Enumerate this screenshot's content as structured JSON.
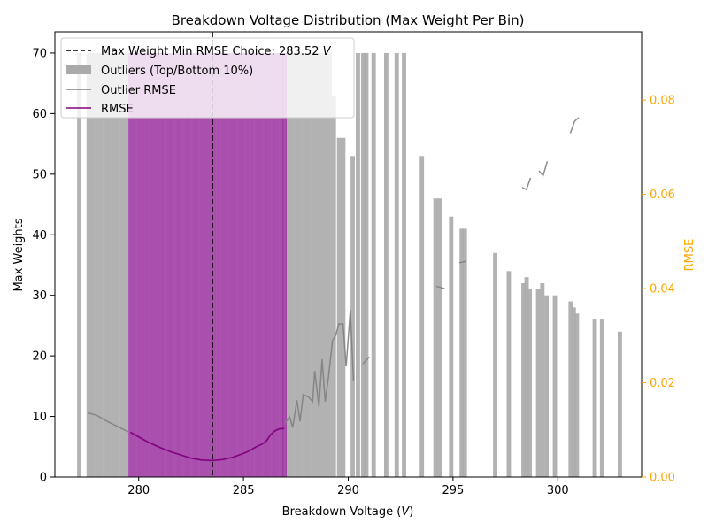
{
  "chart_data": {
    "type": "bar",
    "title": "Breakdown Voltage Distribution (Max Weight Per Bin)",
    "xlabel": "Breakdown Voltage (",
    "xlabel_unit": "V",
    "xlabel_close": ")",
    "ylabel_left": "Max Weights",
    "ylabel_right": "RMSE",
    "xlim": [
      276.0,
      304.0
    ],
    "ylim_left": [
      0,
      73.5
    ],
    "ylim_right": [
      0,
      0.0945
    ],
    "x_ticks": [
      280,
      285,
      290,
      295,
      300
    ],
    "y_ticks_left": [
      0,
      10,
      20,
      30,
      40,
      50,
      60,
      70
    ],
    "y_ticks_right": [
      "0.00",
      "0.02",
      "0.04",
      "0.06",
      "0.08"
    ],
    "y_ticks_right_values": [
      0.0,
      0.02,
      0.04,
      0.06,
      0.08
    ],
    "legend": {
      "placement": "top-left",
      "entries": [
        {
          "label": "Max Weight Min RMSE Choice: 283.52 ",
          "unit": "V",
          "style": "dashed-line",
          "color": "#000000"
        },
        {
          "label": "Outliers (Top/Bottom 10%)",
          "style": "bar",
          "color": "#aaaaaa"
        },
        {
          "label": "Outlier RMSE",
          "style": "line",
          "color": "#808080"
        },
        {
          "label": "RMSE",
          "style": "line",
          "color": "#800080"
        }
      ]
    },
    "choice_x": 283.52,
    "colors": {
      "outlier_bar": "#aaaaaa",
      "main_bar": "#9b30a0",
      "outlier_rmse": "#808080",
      "rmse": "#800080",
      "right_axis": "#ffa500",
      "choice_line": "#000000"
    },
    "bar_width": 0.18,
    "outlier_bars": [
      {
        "x": 277.15,
        "y": 70
      },
      {
        "x": 277.6,
        "y": 70
      },
      {
        "x": 277.8,
        "y": 70
      },
      {
        "x": 278.0,
        "y": 70
      },
      {
        "x": 278.2,
        "y": 70
      },
      {
        "x": 278.4,
        "y": 70
      },
      {
        "x": 278.6,
        "y": 70
      },
      {
        "x": 278.8,
        "y": 70
      },
      {
        "x": 279.0,
        "y": 70
      },
      {
        "x": 279.2,
        "y": 70
      },
      {
        "x": 279.4,
        "y": 70
      },
      {
        "x": 287.1,
        "y": 70
      },
      {
        "x": 287.3,
        "y": 70
      },
      {
        "x": 287.5,
        "y": 70
      },
      {
        "x": 287.7,
        "y": 70
      },
      {
        "x": 287.9,
        "y": 70
      },
      {
        "x": 288.1,
        "y": 70
      },
      {
        "x": 288.3,
        "y": 70
      },
      {
        "x": 288.5,
        "y": 70
      },
      {
        "x": 288.7,
        "y": 70
      },
      {
        "x": 288.9,
        "y": 70
      },
      {
        "x": 289.1,
        "y": 70
      },
      {
        "x": 289.3,
        "y": 63
      },
      {
        "x": 289.55,
        "y": 56
      },
      {
        "x": 289.75,
        "y": 56
      },
      {
        "x": 290.2,
        "y": 53
      },
      {
        "x": 290.45,
        "y": 70
      },
      {
        "x": 290.7,
        "y": 70
      },
      {
        "x": 290.85,
        "y": 70
      },
      {
        "x": 291.2,
        "y": 70
      },
      {
        "x": 291.8,
        "y": 70
      },
      {
        "x": 292.3,
        "y": 70
      },
      {
        "x": 292.65,
        "y": 70
      },
      {
        "x": 293.5,
        "y": 53
      },
      {
        "x": 294.15,
        "y": 46
      },
      {
        "x": 294.35,
        "y": 46
      },
      {
        "x": 294.9,
        "y": 43
      },
      {
        "x": 295.4,
        "y": 41
      },
      {
        "x": 295.55,
        "y": 41
      },
      {
        "x": 297.0,
        "y": 37
      },
      {
        "x": 297.65,
        "y": 34
      },
      {
        "x": 298.35,
        "y": 32
      },
      {
        "x": 298.5,
        "y": 33
      },
      {
        "x": 298.65,
        "y": 31
      },
      {
        "x": 299.05,
        "y": 31
      },
      {
        "x": 299.25,
        "y": 32
      },
      {
        "x": 299.45,
        "y": 30
      },
      {
        "x": 299.85,
        "y": 30
      },
      {
        "x": 300.6,
        "y": 29
      },
      {
        "x": 300.75,
        "y": 28
      },
      {
        "x": 300.9,
        "y": 27
      },
      {
        "x": 301.75,
        "y": 26
      },
      {
        "x": 302.1,
        "y": 26
      },
      {
        "x": 302.95,
        "y": 24
      }
    ],
    "main_bars": [
      {
        "x": 279.6,
        "y": 70
      },
      {
        "x": 279.8,
        "y": 70
      },
      {
        "x": 280.0,
        "y": 70
      },
      {
        "x": 280.2,
        "y": 70
      },
      {
        "x": 280.4,
        "y": 70
      },
      {
        "x": 280.6,
        "y": 70
      },
      {
        "x": 280.8,
        "y": 70
      },
      {
        "x": 281.0,
        "y": 70
      },
      {
        "x": 281.2,
        "y": 70
      },
      {
        "x": 281.4,
        "y": 70
      },
      {
        "x": 281.6,
        "y": 70
      },
      {
        "x": 281.8,
        "y": 70
      },
      {
        "x": 282.0,
        "y": 70
      },
      {
        "x": 282.2,
        "y": 70
      },
      {
        "x": 282.4,
        "y": 70
      },
      {
        "x": 282.6,
        "y": 70
      },
      {
        "x": 282.8,
        "y": 70
      },
      {
        "x": 283.0,
        "y": 70
      },
      {
        "x": 283.2,
        "y": 70
      },
      {
        "x": 283.4,
        "y": 70
      },
      {
        "x": 283.6,
        "y": 70
      },
      {
        "x": 283.8,
        "y": 70
      },
      {
        "x": 284.0,
        "y": 70
      },
      {
        "x": 284.2,
        "y": 70
      },
      {
        "x": 284.4,
        "y": 70
      },
      {
        "x": 284.6,
        "y": 70
      },
      {
        "x": 284.8,
        "y": 70
      },
      {
        "x": 285.0,
        "y": 70
      },
      {
        "x": 285.2,
        "y": 70
      },
      {
        "x": 285.4,
        "y": 70
      },
      {
        "x": 285.6,
        "y": 70
      },
      {
        "x": 285.8,
        "y": 70
      },
      {
        "x": 286.0,
        "y": 70
      },
      {
        "x": 286.2,
        "y": 70
      },
      {
        "x": 286.4,
        "y": 70
      },
      {
        "x": 286.6,
        "y": 70
      },
      {
        "x": 286.8,
        "y": 70
      },
      {
        "x": 286.95,
        "y": 70
      }
    ],
    "rmse_series": {
      "name": "RMSE",
      "x": [
        279.6,
        280.0,
        280.5,
        281.0,
        281.5,
        282.0,
        282.5,
        283.0,
        283.5,
        284.0,
        284.5,
        285.0,
        285.3,
        285.6,
        285.9,
        286.1,
        286.3,
        286.5,
        286.7,
        286.95
      ],
      "y": [
        0.0095,
        0.0085,
        0.0073,
        0.0063,
        0.0054,
        0.0047,
        0.004,
        0.0036,
        0.0035,
        0.0037,
        0.0042,
        0.005,
        0.0056,
        0.0064,
        0.007,
        0.0077,
        0.009,
        0.0098,
        0.0102,
        0.0103
      ]
    },
    "outlier_rmse_segments": [
      {
        "x": [
          277.6,
          278.0,
          278.5,
          279.0,
          279.5
        ],
        "y": [
          0.0136,
          0.0131,
          0.0118,
          0.0107,
          0.0096
        ]
      },
      {
        "x": [
          287.0,
          287.2,
          287.35,
          287.55,
          287.7,
          287.85,
          288.1,
          288.3,
          288.4,
          288.6,
          288.75,
          288.9,
          289.05,
          289.25,
          289.4,
          289.55,
          289.75,
          289.9,
          290.1,
          290.25
        ],
        "y": [
          0.0115,
          0.0128,
          0.0105,
          0.0163,
          0.0118,
          0.0175,
          0.017,
          0.016,
          0.0225,
          0.015,
          0.025,
          0.016,
          0.021,
          0.029,
          0.03,
          0.0325,
          0.0325,
          0.0235,
          0.0355,
          0.0205
        ]
      },
      {
        "x": [
          290.7,
          291.0
        ],
        "y": [
          0.024,
          0.0255
        ]
      },
      {
        "x": [
          294.2,
          294.6
        ],
        "y": [
          0.0405,
          0.04
        ]
      },
      {
        "x": [
          295.3,
          295.6
        ],
        "y": [
          0.0455,
          0.0458
        ]
      },
      {
        "x": [
          298.3,
          298.5,
          298.7
        ],
        "y": [
          0.0615,
          0.061,
          0.0635
        ]
      },
      {
        "x": [
          299.1,
          299.3,
          299.5
        ],
        "y": [
          0.065,
          0.064,
          0.067
        ]
      },
      {
        "x": [
          300.6,
          300.8,
          301.0
        ],
        "y": [
          0.073,
          0.0755,
          0.0763
        ]
      }
    ]
  }
}
